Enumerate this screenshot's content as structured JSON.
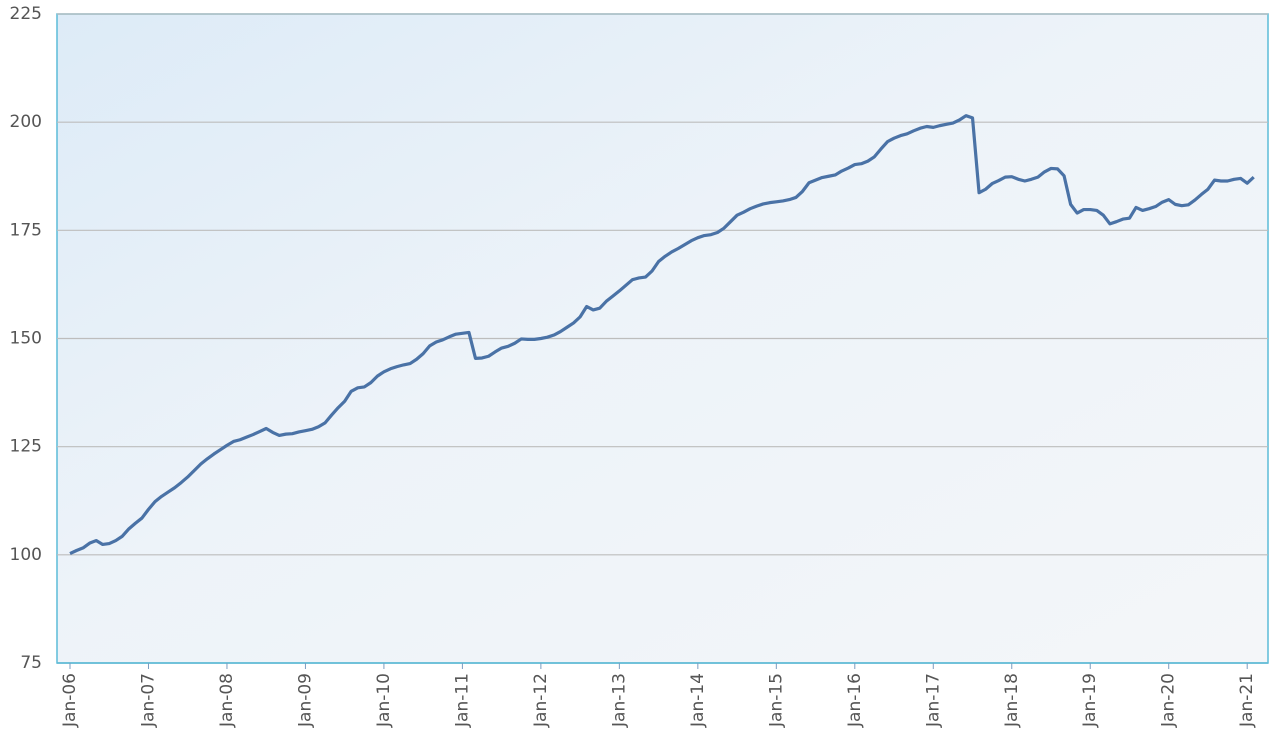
{
  "chart_data": {
    "type": "line",
    "categories": [
      "Jan-06",
      null,
      null,
      null,
      null,
      null,
      null,
      null,
      null,
      null,
      null,
      null,
      "Jan-07",
      null,
      null,
      null,
      null,
      null,
      null,
      null,
      null,
      null,
      null,
      null,
      "Jan-08",
      null,
      null,
      null,
      null,
      null,
      null,
      null,
      null,
      null,
      null,
      null,
      "Jan-09",
      null,
      null,
      null,
      null,
      null,
      null,
      null,
      null,
      null,
      null,
      null,
      "Jan-10",
      null,
      null,
      null,
      null,
      null,
      null,
      null,
      null,
      null,
      null,
      null,
      "Jan-11",
      null,
      null,
      null,
      null,
      null,
      null,
      null,
      null,
      null,
      null,
      null,
      "Jan-12",
      null,
      null,
      null,
      null,
      null,
      null,
      null,
      null,
      null,
      null,
      null,
      "Jan-13",
      null,
      null,
      null,
      null,
      null,
      null,
      null,
      null,
      null,
      null,
      null,
      "Jan-14",
      null,
      null,
      null,
      null,
      null,
      null,
      null,
      null,
      null,
      null,
      null,
      "Jan-15",
      null,
      null,
      null,
      null,
      null,
      null,
      null,
      null,
      null,
      null,
      null,
      "Jan-16",
      null,
      null,
      null,
      null,
      null,
      null,
      null,
      null,
      null,
      null,
      null,
      "Jan-17",
      null,
      null,
      null,
      null,
      null,
      null,
      null,
      null,
      null,
      null,
      null,
      "Jan-18",
      null,
      null,
      null,
      null,
      null,
      null,
      null,
      null,
      null,
      null,
      null,
      "Jan-19",
      null,
      null,
      null,
      null,
      null,
      null,
      null,
      null,
      null,
      null,
      null,
      "Jan-20",
      null,
      null,
      null,
      null,
      null,
      null,
      null,
      null,
      null,
      null,
      null,
      "Jan-21",
      null
    ],
    "values": [
      100.3,
      101,
      101.6,
      102.7,
      103.3,
      102.4,
      102.6,
      103.3,
      104.3,
      106,
      107.3,
      108.5,
      110.5,
      112.3,
      113.5,
      114.5,
      115.5,
      116.7,
      118,
      119.5,
      121,
      122.2,
      123.3,
      124.3,
      125.3,
      126.2,
      126.6,
      127.2,
      127.8,
      128.5,
      129.2,
      128.3,
      127.6,
      127.9,
      128,
      128.4,
      128.7,
      129,
      129.6,
      130.5,
      132.3,
      134,
      135.5,
      137.8,
      138.6,
      138.8,
      139.8,
      141.3,
      142.3,
      143,
      143.5,
      143.9,
      144.2,
      145.2,
      146.5,
      148.3,
      149.2,
      149.7,
      150.4,
      151,
      151.2,
      151.4,
      145.4,
      145.5,
      145.9,
      146.9,
      147.8,
      148.2,
      148.9,
      149.9,
      149.8,
      149.8,
      150,
      150.3,
      150.8,
      151.6,
      152.6,
      153.6,
      155,
      157.4,
      156.6,
      157,
      158.6,
      159.8,
      161,
      162.3,
      163.6,
      164,
      164.2,
      165.6,
      167.8,
      169,
      170,
      170.8,
      171.7,
      172.6,
      173.3,
      173.8,
      174,
      174.5,
      175.5,
      177,
      178.5,
      179.2,
      180,
      180.6,
      181.1,
      181.4,
      181.6,
      181.8,
      182.1,
      182.6,
      184,
      186,
      186.6,
      187.2,
      187.5,
      187.8,
      188.7,
      189.4,
      190.2,
      190.4,
      191,
      192,
      193.8,
      195.5,
      196.3,
      196.9,
      197.3,
      198,
      198.6,
      199,
      198.8,
      199.2,
      199.5,
      199.8,
      200.5,
      201.5,
      201,
      183.7,
      184.5,
      185.8,
      186.5,
      187.3,
      187.4,
      186.8,
      186.4,
      186.8,
      187.3,
      188.5,
      189.3,
      189.2,
      187.6,
      181,
      179,
      179.8,
      179.8,
      179.6,
      178.5,
      176.5,
      177,
      177.6,
      177.8,
      180.3,
      179.6,
      180,
      180.5,
      181.5,
      182.1,
      181,
      180.7,
      180.9,
      182,
      183.3,
      184.5,
      186.6,
      186.4,
      186.4,
      186.8,
      187,
      185.9,
      187.3
    ],
    "color": "#4a72a6",
    "ylim": [
      75,
      225
    ],
    "yticks": [
      75,
      100,
      125,
      150,
      175,
      200,
      225
    ],
    "grid": true
  }
}
